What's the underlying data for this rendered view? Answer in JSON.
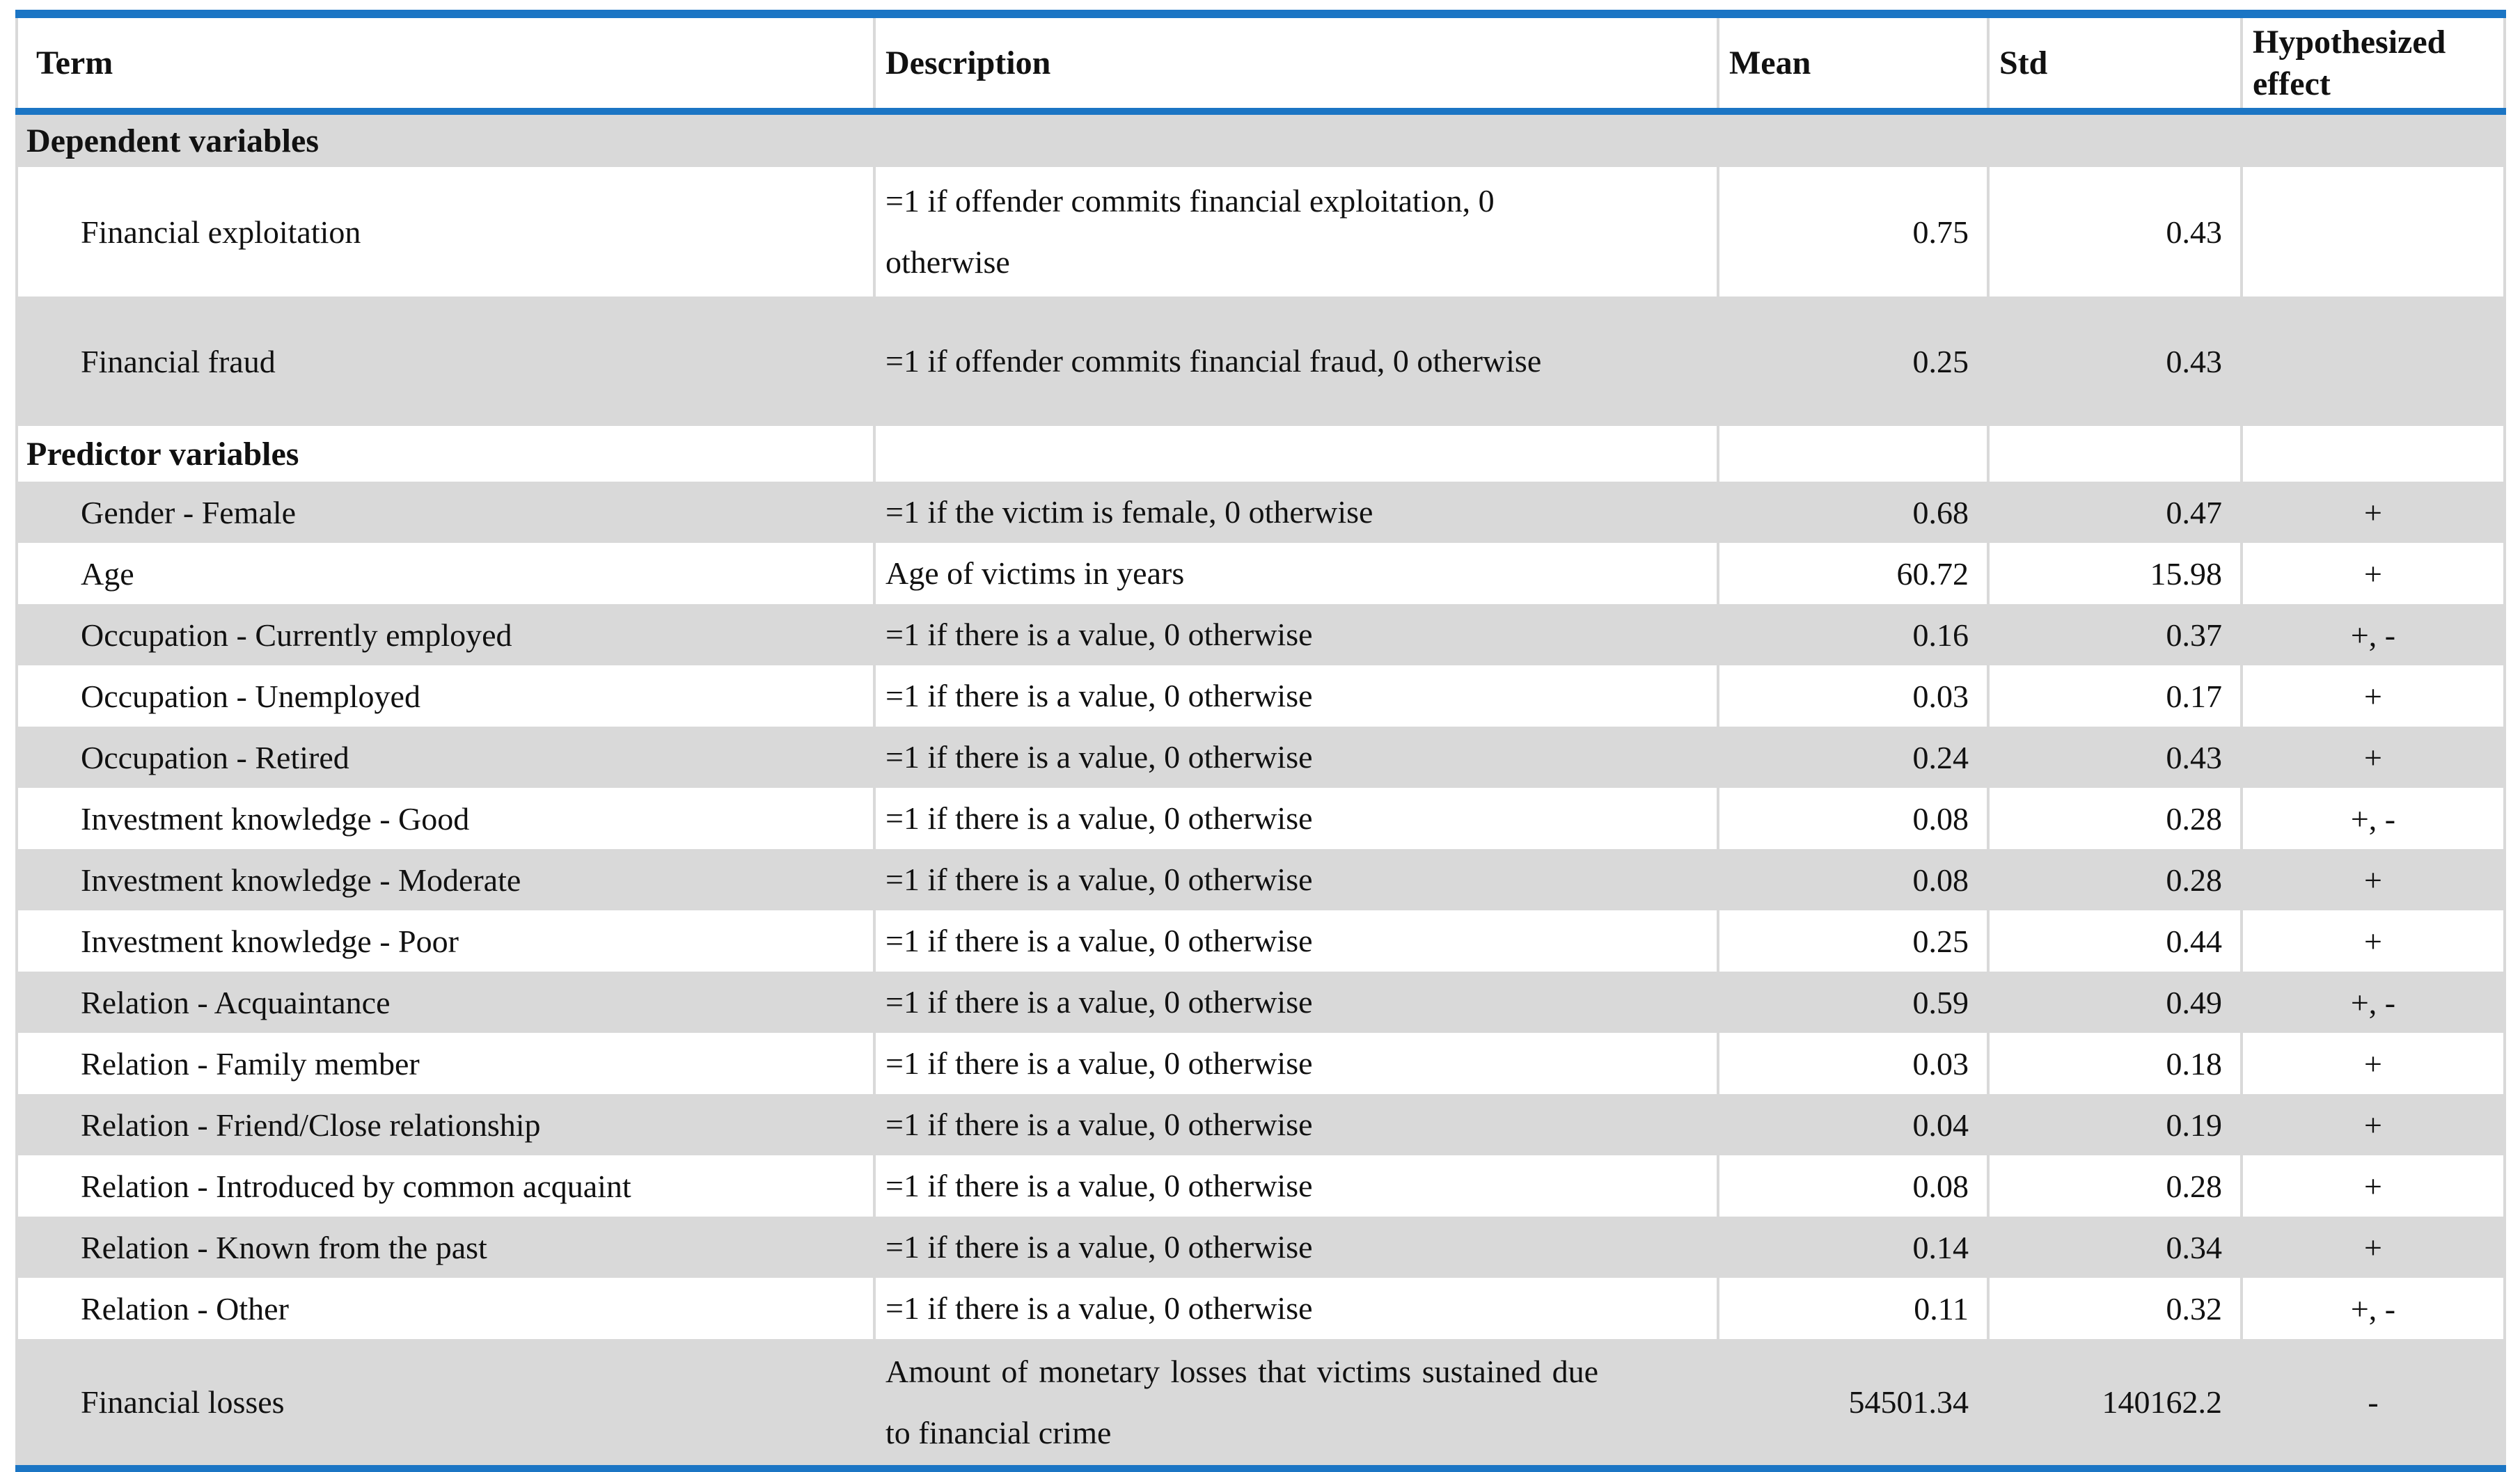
{
  "colors": {
    "accent_blue": "#1B75C4",
    "row_band_gray": "#D9D9D9",
    "grid_line_gray": "#D9D9D9",
    "text": "#111111"
  },
  "table": {
    "headers": {
      "term": "Term",
      "description": "Description",
      "mean": "Mean",
      "std": "Std",
      "effect": "Hypothesized effect"
    },
    "rows": [
      {
        "type": "section",
        "term": "Dependent variables",
        "description": "",
        "mean": "",
        "std": "",
        "effect": ""
      },
      {
        "type": "data",
        "term": "Financial exploitation",
        "description": "=1 if offender commits financial exploitation, 0 otherwise",
        "mean": "0.75",
        "std": "0.43",
        "effect": ""
      },
      {
        "type": "data",
        "term": "Financial fraud",
        "description": "=1 if offender commits financial fraud, 0 otherwise",
        "mean": "0.25",
        "std": "0.43",
        "effect": ""
      },
      {
        "type": "section",
        "term": "Predictor variables",
        "description": "",
        "mean": "",
        "std": "",
        "effect": ""
      },
      {
        "type": "data",
        "term": "Gender - Female",
        "description": "=1 if the victim is female, 0 otherwise",
        "mean": "0.68",
        "std": "0.47",
        "effect": "+"
      },
      {
        "type": "data",
        "term": "Age",
        "description": "Age of victims in years",
        "mean": "60.72",
        "std": "15.98",
        "effect": "+"
      },
      {
        "type": "data",
        "term": "Occupation - Currently employed",
        "description": "=1 if there is a value, 0 otherwise",
        "mean": "0.16",
        "std": "0.37",
        "effect": "+, -"
      },
      {
        "type": "data",
        "term": "Occupation - Unemployed",
        "description": "=1 if there is a value, 0 otherwise",
        "mean": "0.03",
        "std": "0.17",
        "effect": "+"
      },
      {
        "type": "data",
        "term": "Occupation - Retired",
        "description": "=1 if there is a value, 0 otherwise",
        "mean": "0.24",
        "std": "0.43",
        "effect": "+"
      },
      {
        "type": "data",
        "term": "Investment knowledge - Good",
        "description": "=1 if there is a value, 0 otherwise",
        "mean": "0.08",
        "std": "0.28",
        "effect": "+, -"
      },
      {
        "type": "data",
        "term": "Investment knowledge - Moderate",
        "description": "=1 if there is a value, 0 otherwise",
        "mean": "0.08",
        "std": "0.28",
        "effect": "+"
      },
      {
        "type": "data",
        "term": "Investment knowledge - Poor",
        "description": "=1 if there is a value, 0 otherwise",
        "mean": "0.25",
        "std": "0.44",
        "effect": "+"
      },
      {
        "type": "data",
        "term": "Relation - Acquaintance",
        "description": "=1 if there is a value, 0 otherwise",
        "mean": "0.59",
        "std": "0.49",
        "effect": "+, -"
      },
      {
        "type": "data",
        "term": "Relation - Family member",
        "description": "=1 if there is a value, 0 otherwise",
        "mean": "0.03",
        "std": "0.18",
        "effect": "+"
      },
      {
        "type": "data",
        "term": "Relation - Friend/Close relationship",
        "description": "=1 if there is a value, 0 otherwise",
        "mean": "0.04",
        "std": "0.19",
        "effect": "+"
      },
      {
        "type": "data",
        "term": "Relation - Introduced by common acquaint",
        "description": "=1 if there is a value, 0 otherwise",
        "mean": "0.08",
        "std": "0.28",
        "effect": "+"
      },
      {
        "type": "data",
        "term": "Relation - Known from the past",
        "description": "=1 if there is a value, 0 otherwise",
        "mean": "0.14",
        "std": "0.34",
        "effect": "+"
      },
      {
        "type": "data",
        "term": "Relation - Other",
        "description": "=1 if there is a value, 0 otherwise",
        "mean": "0.11",
        "std": "0.32",
        "effect": "+, -"
      },
      {
        "type": "data",
        "term": "Financial losses",
        "description": "Amount of monetary losses that victims sustained due to financial crime",
        "mean": "54501.34",
        "std": "140162.2",
        "effect": "-",
        "justify": true
      }
    ]
  }
}
